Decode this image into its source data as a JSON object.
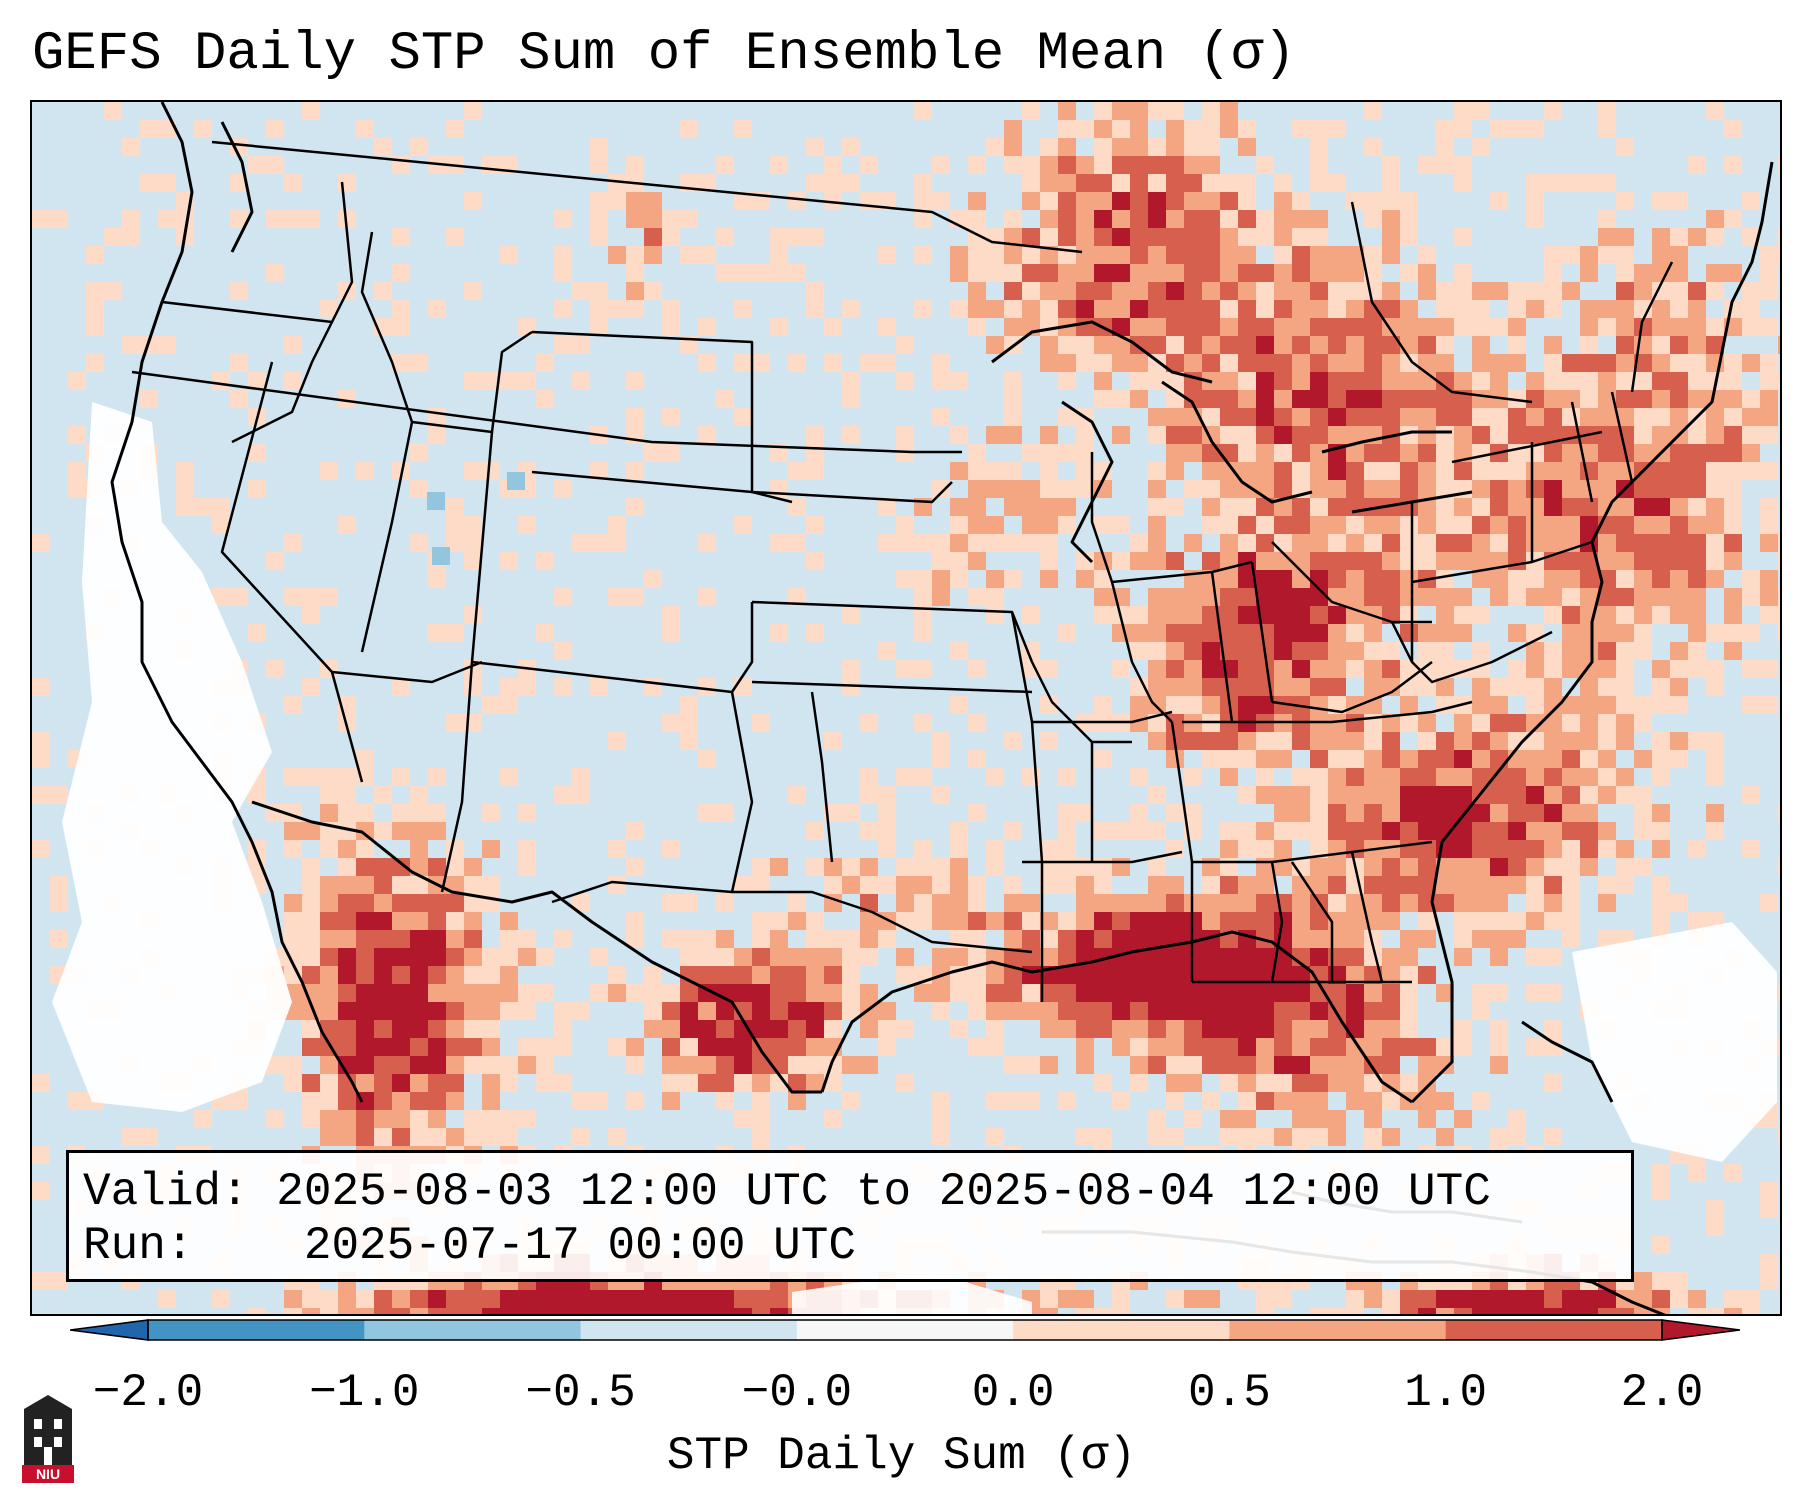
{
  "title": "GEFS Daily STP Sum of Ensemble Mean (σ)",
  "info": {
    "valid_label": "Valid:",
    "valid_value": "2025-08-03 12:00 UTC to 2025-08-04 12:00 UTC",
    "run_label": "Run:",
    "run_value": "2025-07-17 00:00 UTC"
  },
  "colorbar": {
    "label": "STP Daily Sum (σ)",
    "ticks": [
      "−2.0",
      "−1.0",
      "−0.5",
      "−0.0",
      "0.0",
      "0.5",
      "1.0",
      "2.0"
    ],
    "bin_colors": [
      "#4393c3",
      "#92c5de",
      "#d1e5f0",
      "#f7f7f7",
      "#fddbc7",
      "#f4a582",
      "#d6604d"
    ],
    "under_color": "#2166ac",
    "over_color": "#b2182b"
  },
  "colors": {
    "land_background": "#d1e5f0",
    "white_bin": "#ffffff",
    "light_red": "#fddbc7",
    "salmon": "#f4a582",
    "red": "#d6604d",
    "dark_red": "#b2182b",
    "light_blue": "#92c5de"
  },
  "logo": {
    "text": "NIU"
  }
}
